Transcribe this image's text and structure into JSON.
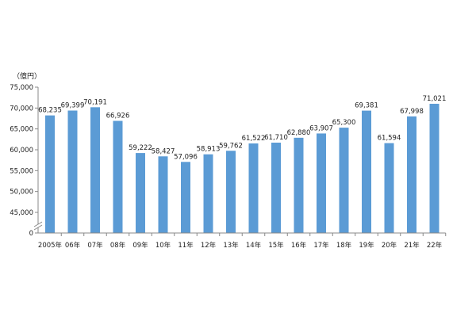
{
  "chart_data": {
    "type": "bar",
    "unit_label": "（億円）",
    "categories": [
      "2005年",
      "06年",
      "07年",
      "08年",
      "09年",
      "10年",
      "11年",
      "12年",
      "13年",
      "14年",
      "15年",
      "16年",
      "17年",
      "18年",
      "19年",
      "20年",
      "21年",
      "22年"
    ],
    "values": [
      68235,
      69399,
      70191,
      66926,
      59222,
      58427,
      57096,
      58913,
      59762,
      61522,
      61710,
      62880,
      63907,
      65300,
      69381,
      61594,
      67998,
      71021
    ],
    "value_labels": [
      "68,235",
      "69,399",
      "70,191",
      "66,926",
      "59,222",
      "58,427",
      "57,096",
      "58,913",
      "59,762",
      "61,522",
      "61,710",
      "62,880",
      "63,907",
      "65,300",
      "69,381",
      "61,594",
      "67,998",
      "71,021"
    ],
    "y_ticks": [
      {
        "value": 75000,
        "label": "75,000"
      },
      {
        "value": 70000,
        "label": "70,000"
      },
      {
        "value": 65000,
        "label": "65,000"
      },
      {
        "value": 60000,
        "label": "60,000"
      },
      {
        "value": 55000,
        "label": "55,000"
      },
      {
        "value": 50000,
        "label": "50,000"
      },
      {
        "value": 45000,
        "label": "45,000"
      }
    ],
    "y_zero_label": "0",
    "ylim": [
      45000,
      75000
    ],
    "axis_break": true,
    "grid": false,
    "colors": {
      "bar": "#5b9bd5",
      "axis": "#888888"
    }
  }
}
